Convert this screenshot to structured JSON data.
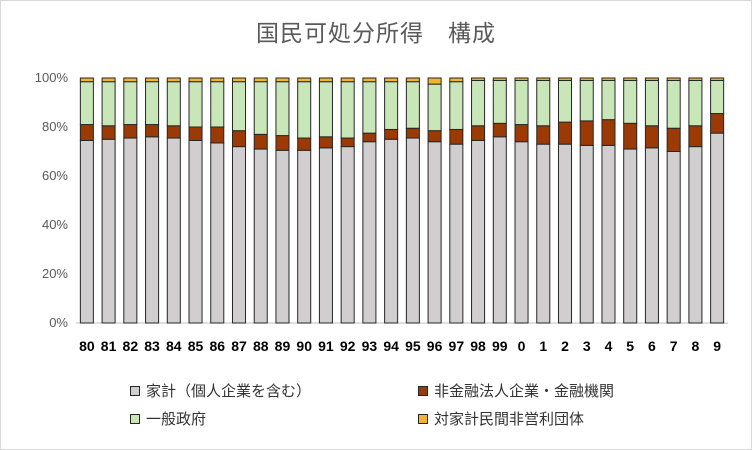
{
  "chart_data": {
    "type": "bar",
    "stacked": true,
    "title": "国民可処分所得　構成",
    "categories": [
      "80",
      "81",
      "82",
      "83",
      "84",
      "85",
      "86",
      "87",
      "88",
      "89",
      "90",
      "91",
      "92",
      "93",
      "94",
      "95",
      "96",
      "97",
      "98",
      "99",
      "0",
      "1",
      "2",
      "3",
      "4",
      "5",
      "6",
      "7",
      "8",
      "9"
    ],
    "yticks": [
      "0%",
      "20%",
      "40%",
      "60%",
      "80%",
      "100%"
    ],
    "ylim": [
      0,
      100
    ],
    "grid": false,
    "legend_position": "bottom",
    "series": [
      {
        "name": "家計（個人企業を含む）",
        "color": "#d0cece",
        "values": [
          74.5,
          75,
          75.5,
          76,
          75.5,
          74.5,
          73.5,
          72,
          71,
          70.5,
          70.5,
          71.5,
          72,
          74,
          75,
          75.5,
          74,
          73,
          74.5,
          76,
          74,
          73,
          73,
          72.5,
          72.5,
          71,
          71.5,
          70,
          72,
          77.5
        ]
      },
      {
        "name": "非金融法人企業・金融機関",
        "color": "#9c3a06",
        "values": [
          6.5,
          5.5,
          5.5,
          5,
          5,
          5.5,
          6.5,
          6.5,
          6,
          6,
          5,
          4.5,
          3.5,
          3.5,
          4,
          4,
          4.5,
          6,
          6,
          5.5,
          7,
          7.5,
          9,
          10,
          10.5,
          10.5,
          9,
          9.5,
          8.5,
          8
        ]
      },
      {
        "name": "一般政府",
        "color": "#c9e6b8",
        "values": [
          17.5,
          18,
          17.5,
          17.5,
          18,
          18.5,
          18.5,
          20,
          21.5,
          22,
          23,
          22.5,
          23,
          21,
          19.5,
          19,
          19,
          19.5,
          18.5,
          17.5,
          18,
          18.5,
          17,
          16.5,
          16,
          17.5,
          18.5,
          19.5,
          18.5,
          13.5
        ]
      },
      {
        "name": "対家計民間非営利団体",
        "color": "#f3b32e",
        "values": [
          1.5,
          1.5,
          1.5,
          1.5,
          1.5,
          1.5,
          1.5,
          1.5,
          1.5,
          1.5,
          1.5,
          1.5,
          1.5,
          1.5,
          1.5,
          1.5,
          2.5,
          1.5,
          1,
          1,
          1,
          1,
          1,
          1,
          1,
          1,
          1,
          1,
          1,
          1
        ]
      }
    ]
  }
}
